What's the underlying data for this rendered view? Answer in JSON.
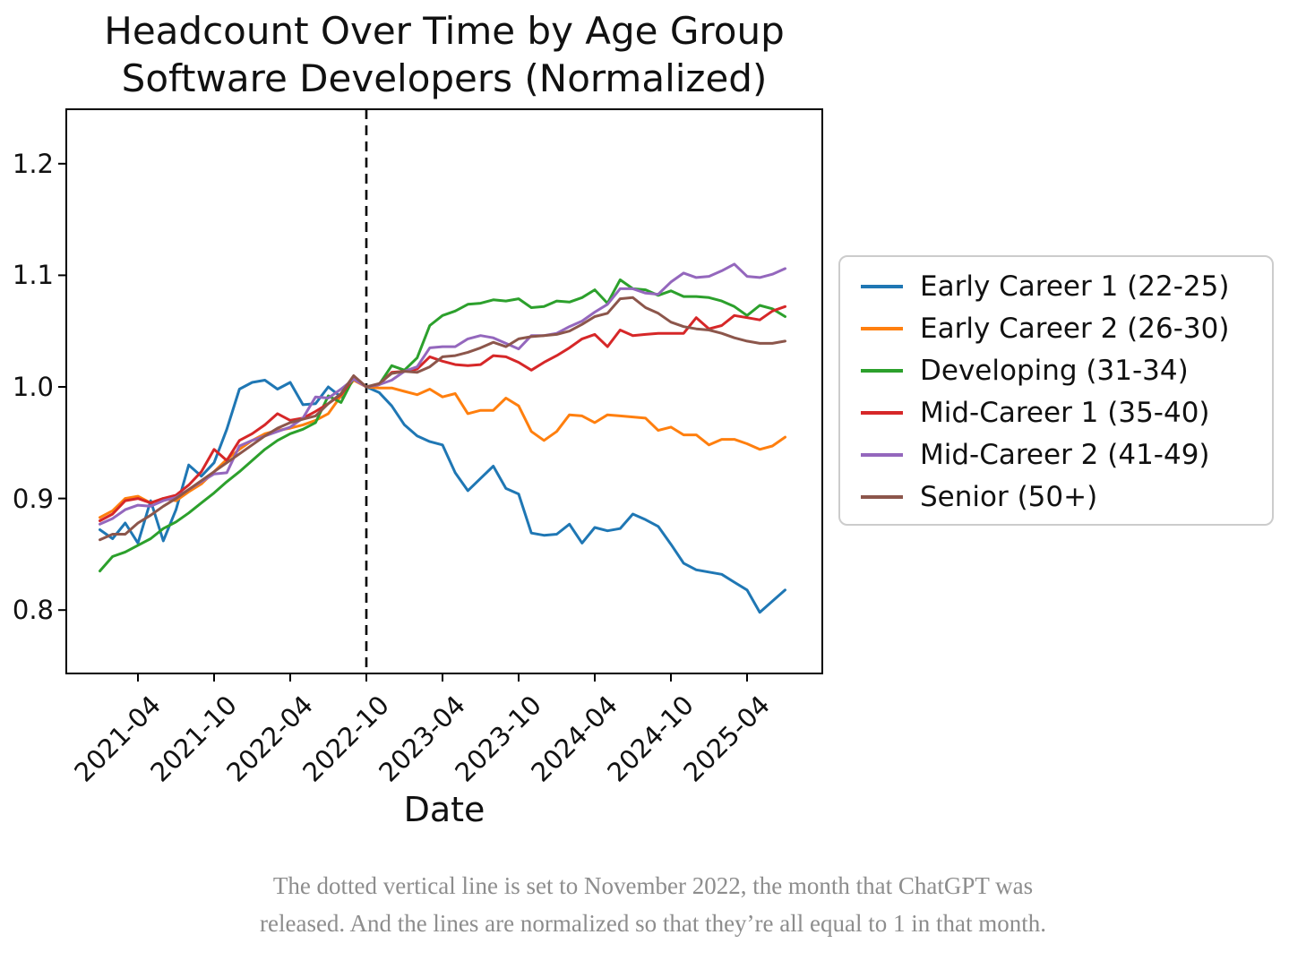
{
  "title": {
    "line1": "Headcount Over Time by Age Group",
    "line2": "Software Developers (Normalized)"
  },
  "axes": {
    "x_label": "Date"
  },
  "caption": {
    "line1": "The dotted vertical line is set to November 2022, the month that ChatGPT was",
    "line2": "released. And the lines are normalized so that they’re all equal to 1 in that month."
  },
  "chart_data": {
    "type": "line",
    "title": "Headcount Over Time by Age Group — Software Developers (Normalized)",
    "xlabel": "Date",
    "ylabel": "",
    "grid": false,
    "legend_position": "center right",
    "ylim": [
      0.74,
      1.25
    ],
    "y_ticks": [
      0.8,
      0.9,
      1.0,
      1.1,
      1.2
    ],
    "y_tick_labels": [
      "0.8",
      "0.9",
      "1.0",
      "1.1",
      "1.2"
    ],
    "x_tick_labels": [
      "2021-04",
      "2021-10",
      "2022-04",
      "2022-10",
      "2023-04",
      "2023-10",
      "2024-04",
      "2024-10",
      "2025-04"
    ],
    "normalized_month": "2022-11",
    "vline": {
      "x": "2022-11",
      "style": "dashed",
      "color": "#000000"
    },
    "x": [
      "2021-02",
      "2021-03",
      "2021-04",
      "2021-05",
      "2021-06",
      "2021-07",
      "2021-08",
      "2021-09",
      "2021-10",
      "2021-11",
      "2021-12",
      "2022-01",
      "2022-02",
      "2022-03",
      "2022-04",
      "2022-05",
      "2022-06",
      "2022-07",
      "2022-08",
      "2022-09",
      "2022-10",
      "2022-11",
      "2022-12",
      "2023-01",
      "2023-02",
      "2023-03",
      "2023-04",
      "2023-05",
      "2023-06",
      "2023-07",
      "2023-08",
      "2023-09",
      "2023-10",
      "2023-11",
      "2023-12",
      "2024-01",
      "2024-02",
      "2024-03",
      "2024-04",
      "2024-05",
      "2024-06",
      "2024-07",
      "2024-08",
      "2024-09",
      "2024-10",
      "2024-11",
      "2024-12",
      "2025-01",
      "2025-02",
      "2025-03",
      "2025-04",
      "2025-05",
      "2025-06",
      "2025-07",
      "2025-08"
    ],
    "series": [
      {
        "name": "Early Career 1 (22-25)",
        "color": "#1f77b4",
        "values": [
          0.872,
          0.864,
          0.878,
          0.86,
          0.898,
          0.862,
          0.89,
          0.93,
          0.92,
          0.932,
          0.962,
          0.998,
          1.004,
          1.006,
          0.998,
          1.004,
          0.984,
          0.985,
          1.0,
          0.991,
          1.008,
          1.0,
          0.995,
          0.983,
          0.966,
          0.956,
          0.951,
          0.948,
          0.923,
          0.907,
          0.918,
          0.929,
          0.909,
          0.904,
          0.869,
          0.867,
          0.868,
          0.877,
          0.86,
          0.874,
          0.871,
          0.873,
          0.886,
          0.881,
          0.875,
          0.859,
          0.842,
          0.836,
          0.834,
          0.832,
          0.825,
          0.818,
          0.798,
          0.808,
          0.818
        ]
      },
      {
        "name": "Early Career 2 (26-30)",
        "color": "#ff7f0e",
        "values": [
          0.883,
          0.889,
          0.9,
          0.902,
          0.896,
          0.9,
          0.898,
          0.906,
          0.913,
          0.924,
          0.935,
          0.944,
          0.952,
          0.958,
          0.961,
          0.963,
          0.966,
          0.97,
          0.976,
          0.992,
          1.006,
          1.0,
          0.999,
          0.999,
          0.996,
          0.993,
          0.998,
          0.991,
          0.994,
          0.976,
          0.979,
          0.979,
          0.99,
          0.983,
          0.96,
          0.952,
          0.96,
          0.975,
          0.974,
          0.968,
          0.975,
          0.974,
          0.973,
          0.972,
          0.961,
          0.964,
          0.957,
          0.957,
          0.948,
          0.953,
          0.953,
          0.949,
          0.944,
          0.947,
          0.955
        ]
      },
      {
        "name": "Developing (31-34)",
        "color": "#2ca02c",
        "values": [
          0.835,
          0.848,
          0.852,
          0.858,
          0.864,
          0.873,
          0.879,
          0.887,
          0.896,
          0.905,
          0.915,
          0.924,
          0.934,
          0.944,
          0.952,
          0.958,
          0.962,
          0.968,
          0.992,
          0.986,
          1.008,
          1.0,
          1.002,
          1.019,
          1.015,
          1.026,
          1.055,
          1.064,
          1.068,
          1.074,
          1.075,
          1.078,
          1.077,
          1.079,
          1.071,
          1.072,
          1.077,
          1.076,
          1.08,
          1.087,
          1.075,
          1.096,
          1.088,
          1.087,
          1.082,
          1.086,
          1.081,
          1.081,
          1.08,
          1.077,
          1.072,
          1.064,
          1.073,
          1.07,
          1.063
        ]
      },
      {
        "name": "Mid-Career 1 (35-40)",
        "color": "#d62728",
        "values": [
          0.88,
          0.886,
          0.898,
          0.9,
          0.896,
          0.9,
          0.903,
          0.912,
          0.924,
          0.944,
          0.934,
          0.952,
          0.958,
          0.966,
          0.976,
          0.97,
          0.972,
          0.978,
          0.985,
          0.993,
          1.008,
          1.0,
          1.002,
          1.013,
          1.014,
          1.016,
          1.027,
          1.023,
          1.02,
          1.019,
          1.02,
          1.028,
          1.027,
          1.022,
          1.015,
          1.022,
          1.028,
          1.035,
          1.043,
          1.047,
          1.036,
          1.051,
          1.046,
          1.047,
          1.048,
          1.048,
          1.048,
          1.062,
          1.052,
          1.055,
          1.064,
          1.062,
          1.06,
          1.068,
          1.072
        ]
      },
      {
        "name": "Mid-Career 2 (41-49)",
        "color": "#9467bd",
        "values": [
          0.877,
          0.882,
          0.89,
          0.894,
          0.893,
          0.898,
          0.901,
          0.908,
          0.915,
          0.922,
          0.923,
          0.947,
          0.952,
          0.956,
          0.96,
          0.964,
          0.972,
          0.991,
          0.99,
          0.998,
          1.007,
          1.0,
          1.002,
          1.006,
          1.014,
          1.018,
          1.035,
          1.036,
          1.036,
          1.043,
          1.046,
          1.044,
          1.039,
          1.034,
          1.046,
          1.046,
          1.048,
          1.054,
          1.059,
          1.067,
          1.074,
          1.088,
          1.088,
          1.084,
          1.083,
          1.094,
          1.102,
          1.098,
          1.099,
          1.104,
          1.11,
          1.099,
          1.098,
          1.101,
          1.106
        ]
      },
      {
        "name": "Senior (50+)",
        "color": "#8c564b",
        "values": [
          0.863,
          0.868,
          0.868,
          0.878,
          0.885,
          0.893,
          0.9,
          0.908,
          0.916,
          0.924,
          0.932,
          0.94,
          0.948,
          0.956,
          0.963,
          0.968,
          0.971,
          0.974,
          0.985,
          0.994,
          1.01,
          1.0,
          1.003,
          1.012,
          1.014,
          1.013,
          1.018,
          1.027,
          1.028,
          1.031,
          1.035,
          1.04,
          1.036,
          1.043,
          1.045,
          1.046,
          1.047,
          1.05,
          1.056,
          1.063,
          1.066,
          1.079,
          1.08,
          1.071,
          1.066,
          1.058,
          1.054,
          1.052,
          1.051,
          1.048,
          1.044,
          1.041,
          1.039,
          1.039,
          1.041
        ]
      }
    ]
  }
}
